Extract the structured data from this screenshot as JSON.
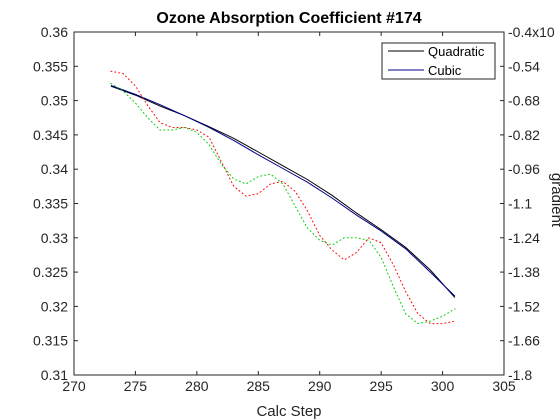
{
  "chart_data": {
    "type": "line",
    "title": "Ozone Absorption Coefficient  #174",
    "xlabel": "Calc Step",
    "ylabel": "",
    "y2label": "gradient",
    "xlim": [
      270,
      305
    ],
    "ylim": [
      0.31,
      0.36
    ],
    "y2lim": [
      -1.8,
      -0.4
    ],
    "xticks": [
      "270",
      "275",
      "280",
      "285",
      "290",
      "295",
      "300",
      "305"
    ],
    "yticks": [
      "0.31",
      "0.315",
      "0.32",
      "0.325",
      "0.33",
      "0.335",
      "0.34",
      "0.345",
      "0.35",
      "0.355",
      "0.36"
    ],
    "y2ticks": [
      "-1.8",
      "-1.66",
      "-1.52",
      "-1.38",
      "-1.24",
      "-1.1",
      "-0.96",
      "-0.82",
      "-0.68",
      "-0.54",
      "-0.4"
    ],
    "y2_exponent_label": "x10",
    "legend_position": "top-right",
    "grid": false,
    "series": [
      {
        "name": "Quadratic",
        "axis": "left",
        "color": "#000000",
        "style": "solid",
        "x": [
          273,
          275,
          277,
          279,
          281,
          283,
          285,
          287,
          289,
          291,
          293,
          295,
          297,
          299,
          301
        ],
        "y": [
          0.3521,
          0.3508,
          0.3492,
          0.3478,
          0.3462,
          0.3445,
          0.3425,
          0.3405,
          0.3385,
          0.3362,
          0.3336,
          0.3312,
          0.3286,
          0.3253,
          0.3213
        ]
      },
      {
        "name": "Cubic",
        "axis": "left",
        "color": "#00008b",
        "style": "solid",
        "x": [
          273,
          275,
          277,
          279,
          281,
          283,
          285,
          287,
          289,
          291,
          293,
          295,
          297,
          299,
          301
        ],
        "y": [
          0.3522,
          0.3509,
          0.3494,
          0.3478,
          0.3461,
          0.3442,
          0.3421,
          0.3401,
          0.3381,
          0.3358,
          0.3333,
          0.331,
          0.3284,
          0.325,
          0.3215
        ]
      },
      {
        "axis": "right",
        "color": "#ff0000",
        "style": "dotted",
        "x": [
          273,
          274,
          275,
          276,
          277,
          278,
          279,
          280,
          281,
          282,
          283,
          284,
          285,
          286,
          287,
          288,
          289,
          290,
          291,
          292,
          293,
          294,
          295,
          296,
          297,
          298,
          299,
          300,
          301
        ],
        "y": [
          -0.56,
          -0.57,
          -0.62,
          -0.7,
          -0.77,
          -0.79,
          -0.79,
          -0.8,
          -0.83,
          -0.93,
          -1.03,
          -1.07,
          -1.06,
          -1.02,
          -1.01,
          -1.05,
          -1.13,
          -1.23,
          -1.29,
          -1.33,
          -1.3,
          -1.24,
          -1.26,
          -1.35,
          -1.46,
          -1.55,
          -1.59,
          -1.59,
          -1.58
        ]
      },
      {
        "axis": "right",
        "color": "#00cc00",
        "style": "dotted",
        "x": [
          273,
          274,
          275,
          276,
          277,
          278,
          279,
          280,
          281,
          282,
          283,
          284,
          285,
          286,
          287,
          288,
          289,
          290,
          291,
          292,
          293,
          294,
          295,
          296,
          297,
          298,
          299,
          300,
          301
        ],
        "y": [
          -0.61,
          -0.64,
          -0.69,
          -0.75,
          -0.8,
          -0.8,
          -0.79,
          -0.81,
          -0.86,
          -0.94,
          -1.0,
          -1.02,
          -0.99,
          -0.98,
          -1.02,
          -1.11,
          -1.2,
          -1.25,
          -1.27,
          -1.24,
          -1.24,
          -1.25,
          -1.32,
          -1.44,
          -1.55,
          -1.59,
          -1.58,
          -1.56,
          -1.53
        ]
      }
    ]
  }
}
